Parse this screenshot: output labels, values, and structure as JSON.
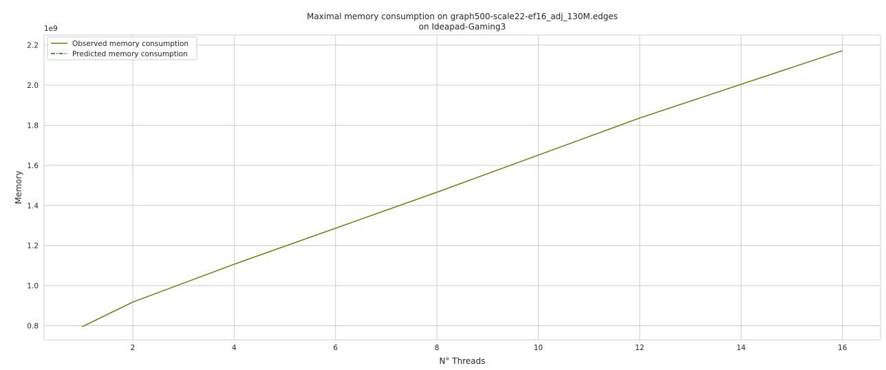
{
  "chart_data": {
    "type": "line",
    "title": "Maximal memory consumption on graph500-scale22-ef16_adj_130M.edges",
    "subtitle": "on Ideapad-Gaming3",
    "xlabel": "N° Threads",
    "ylabel": "Memory",
    "y_offset_label": "1e9",
    "xlim": [
      0.25,
      16.75
    ],
    "ylim": [
      0.73,
      2.25
    ],
    "x_ticks": [
      2,
      4,
      6,
      8,
      10,
      12,
      14,
      16
    ],
    "x_tick_labels": [
      "2",
      "4",
      "6",
      "8",
      "10",
      "12",
      "14",
      "16"
    ],
    "y_ticks": [
      0.8,
      1.0,
      1.2,
      1.4,
      1.6,
      1.8,
      2.0,
      2.2
    ],
    "y_tick_labels": [
      "0.8",
      "1.0",
      "1.2",
      "1.4",
      "1.6",
      "1.8",
      "2.0",
      "2.2"
    ],
    "grid": true,
    "legend_position": "top-left",
    "series": [
      {
        "name": "Observed memory consumption",
        "color": "#6b7a0f",
        "style": "solid",
        "x": [
          1,
          2,
          4,
          8,
          12,
          16
        ],
        "y": [
          0.795,
          0.918,
          1.107,
          1.466,
          1.836,
          2.172
        ]
      },
      {
        "name": "Predicted memory consumption",
        "color": "#1a5a2a",
        "style": "dashdot",
        "x": [],
        "y": []
      }
    ]
  }
}
